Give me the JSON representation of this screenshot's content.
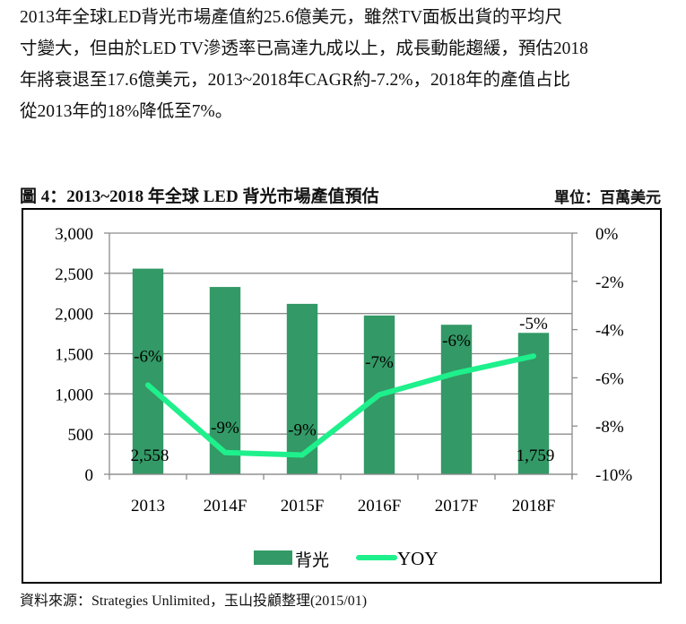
{
  "paragraph": {
    "lines": [
      "2013年全球LED背光市場產值約25.6億美元，雖然TV面板出貨的平均尺",
      "寸變大，但由於LED TV滲透率已高達九成以上，成長動能趨緩，預估2018",
      "年將衰退至17.6億美元，2013~2018年CAGR約-7.2%，2018年的產值占比",
      "從2013年的18%降低至7%。"
    ]
  },
  "figure": {
    "title": "圖 4：2013~2018 年全球 LED 背光市場產值預估",
    "unit": "單位：百萬美元",
    "source": "資料來源：Strategies Unlimited，玉山投顧整理(2015/01)"
  },
  "chart_data": {
    "type": "bar+line",
    "categories": [
      "2013",
      "2014F",
      "2015F",
      "2016F",
      "2017F",
      "2018F"
    ],
    "series": [
      {
        "name": "背光",
        "type": "bar",
        "axis": "left",
        "color": "#339966",
        "values": [
          2558,
          2330,
          2120,
          1975,
          1860,
          1759
        ],
        "data_labels": [
          "2,558",
          "",
          "",
          "",
          "",
          "1,759"
        ]
      },
      {
        "name": "YOY",
        "type": "line",
        "axis": "right",
        "color": "#1EF08C",
        "values": [
          -6.3,
          -9.1,
          -9.2,
          -6.7,
          -5.8,
          -5.1
        ],
        "data_labels": [
          "-6%",
          "-9%",
          "-9%",
          "-7%",
          "-6%",
          "-5%"
        ]
      }
    ],
    "y_left": {
      "range": [
        0,
        3000
      ],
      "ticks": [
        "0",
        "500",
        "1,000",
        "1,500",
        "2,000",
        "2,500",
        "3,000"
      ]
    },
    "y_right": {
      "range": [
        -10,
        0
      ],
      "ticks": [
        "-10%",
        "-8%",
        "-6%",
        "-4%",
        "-2%",
        "0%"
      ]
    },
    "grid": true,
    "legend": "bottom"
  }
}
